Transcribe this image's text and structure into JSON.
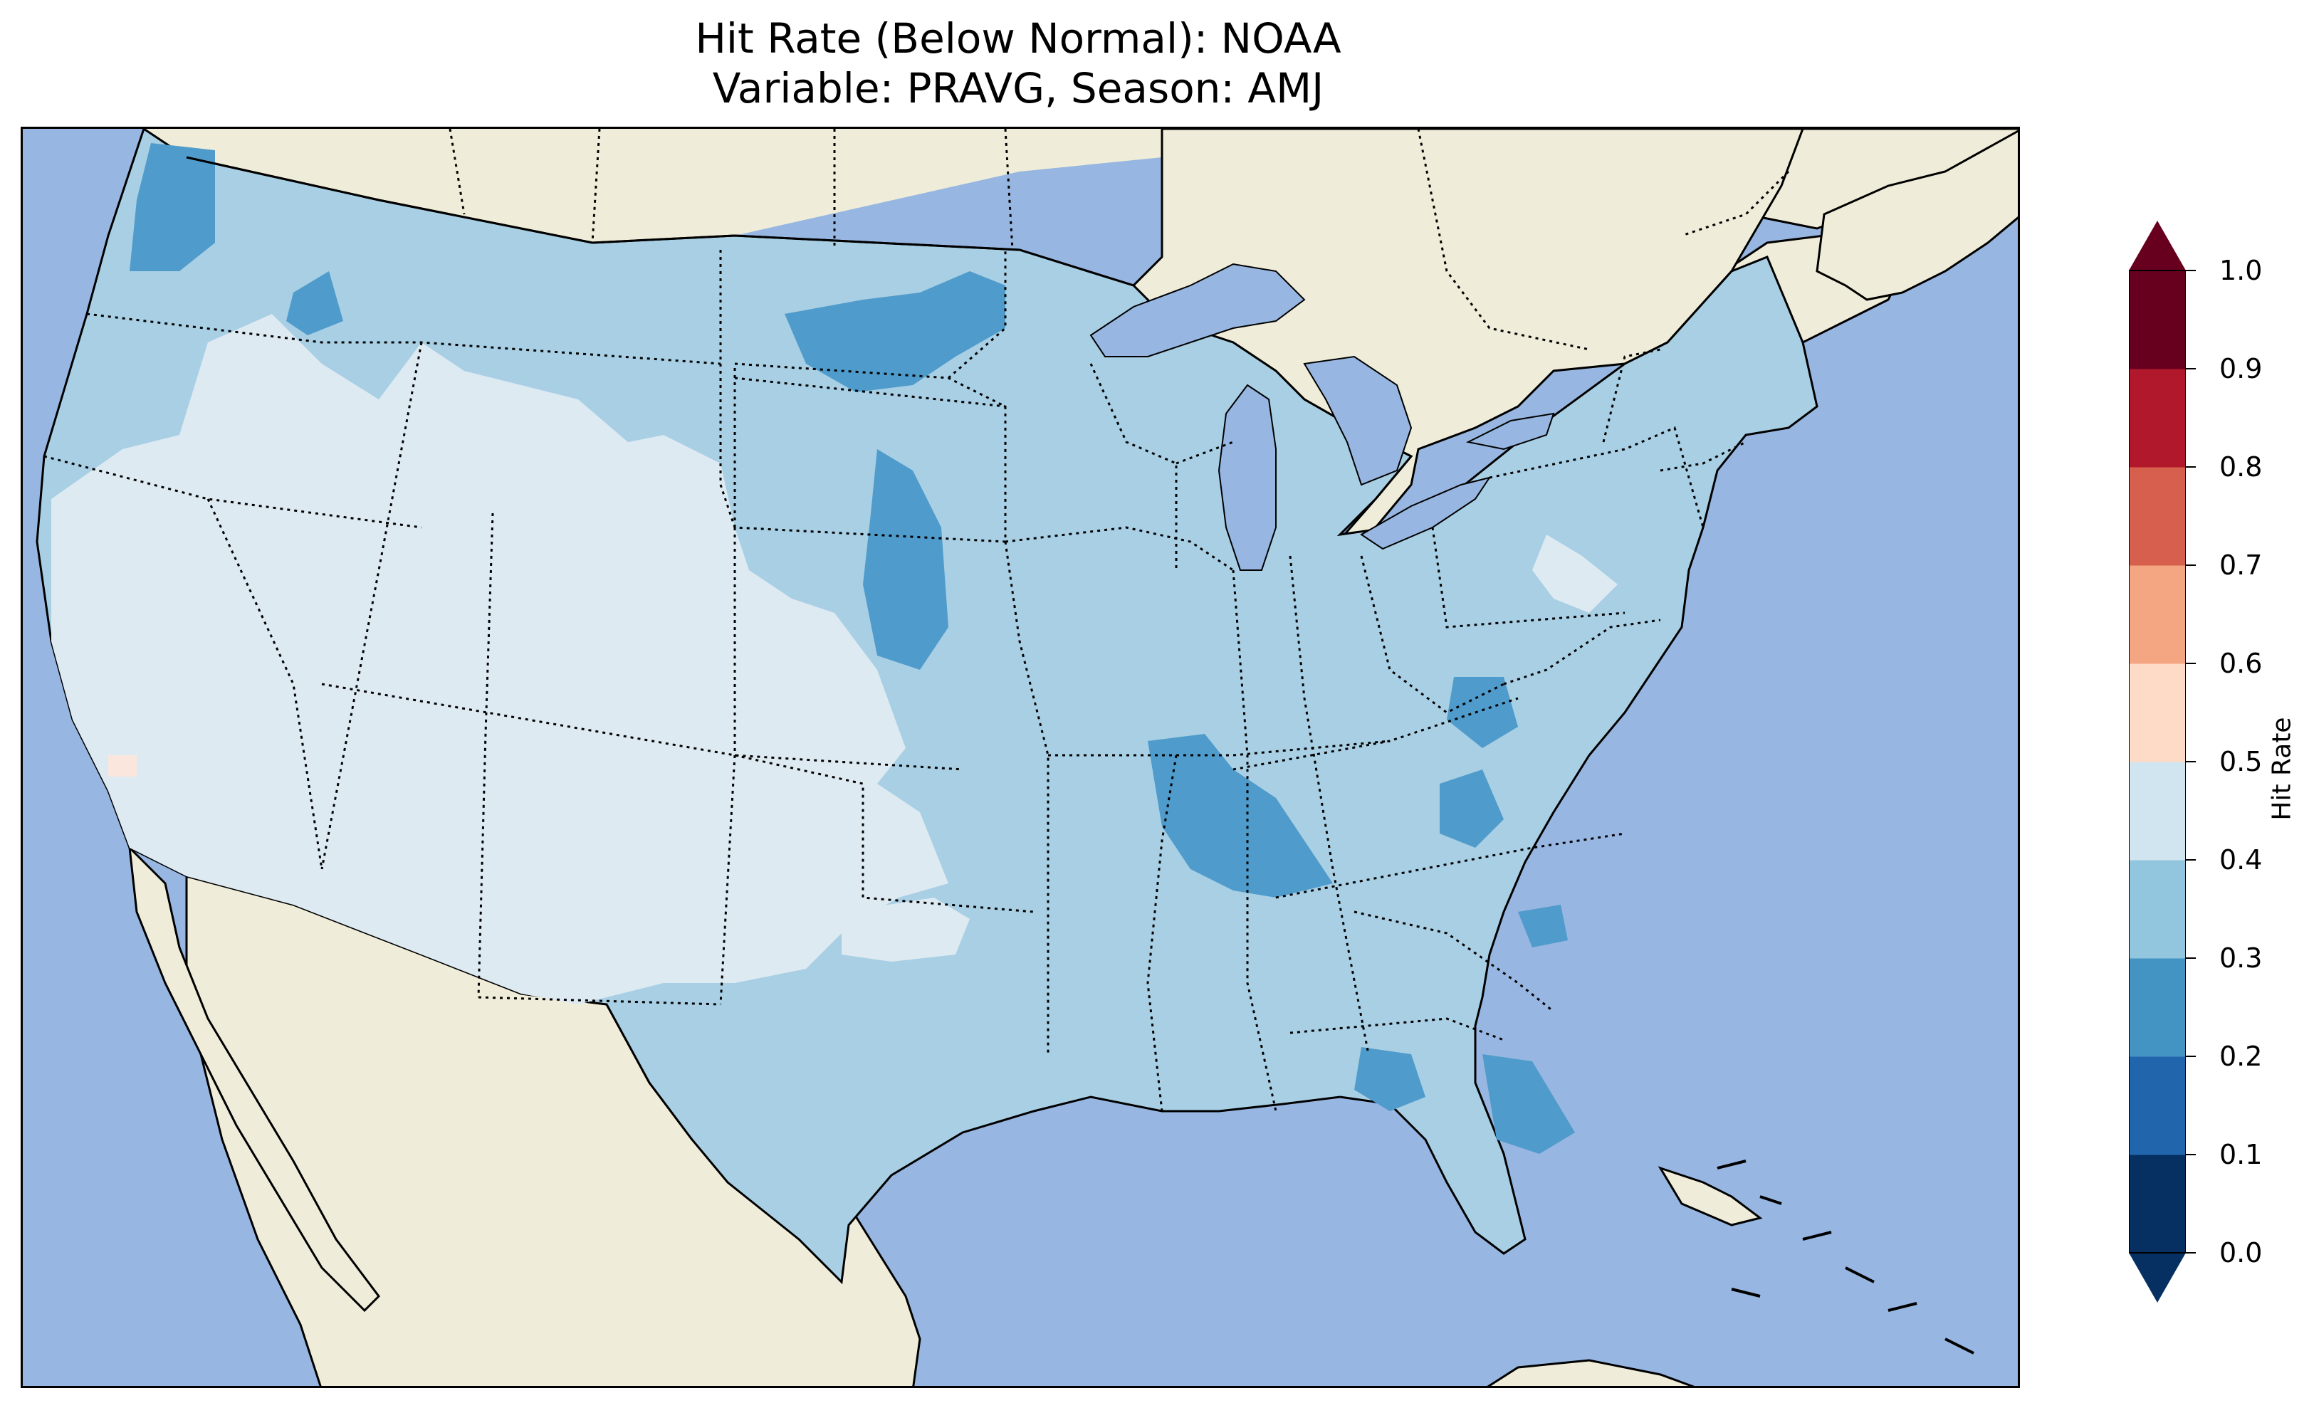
{
  "title_line1": "Hit Rate (Below Normal): NOAA",
  "title_line2": "Variable: PRAVG, Season: AMJ",
  "colorbar": {
    "label": "Hit Rate",
    "ticks": [
      "0.0",
      "0.1",
      "0.2",
      "0.3",
      "0.4",
      "0.5",
      "0.6",
      "0.7",
      "0.8",
      "0.9",
      "1.0"
    ],
    "colors": [
      "#053061",
      "#2166ac",
      "#4393c3",
      "#92c5de",
      "#d1e5f0",
      "#fddbc7",
      "#f4a582",
      "#d6604d",
      "#b2182b",
      "#67001f"
    ],
    "extend": "both"
  },
  "map": {
    "ocean_color": "#97b6e1",
    "land_color": "#efedd9",
    "lake_color": "#97b6e1",
    "region": "Contiguous United States",
    "dominant_hit_rate_range": [
      0.3,
      0.4
    ],
    "low_hit_rate_range": [
      0.2,
      0.3
    ],
    "high_hit_rate_range": [
      0.4,
      0.5
    ],
    "max_hit_rate_range": [
      0.5,
      0.6
    ]
  }
}
